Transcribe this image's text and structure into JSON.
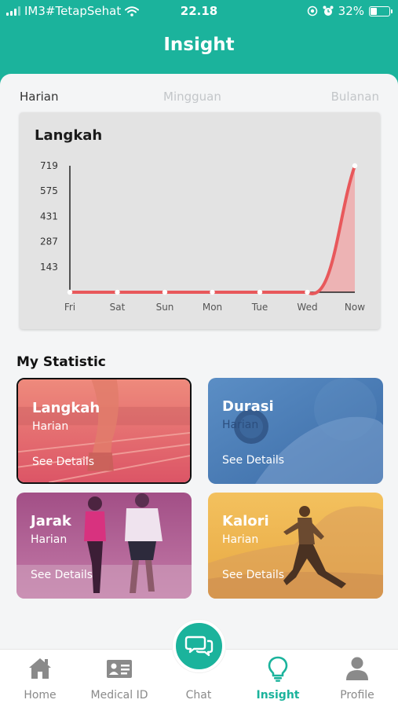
{
  "status_bar": {
    "carrier": "IM3#TetapSehat",
    "time": "22.18",
    "battery": "32%"
  },
  "header": {
    "title": "Insight"
  },
  "period_tabs": {
    "daily": "Harian",
    "weekly": "Mingguan",
    "monthly": "Bulanan",
    "selected": "Harian"
  },
  "chart_data": {
    "type": "area",
    "title": "Langkah",
    "categories": [
      "Fri",
      "Sat",
      "Sun",
      "Mon",
      "Tue",
      "Wed",
      "Now"
    ],
    "values": [
      0,
      0,
      0,
      0,
      0,
      0,
      719
    ],
    "yticks": [
      143,
      287,
      431,
      575,
      719
    ],
    "ylim": [
      0,
      719
    ],
    "line_color": "#e8585b",
    "fill_color": "#f0a3a4",
    "grid": false
  },
  "statistics": {
    "title": "My Statistic",
    "cards": [
      {
        "name": "Langkah",
        "period": "Harian",
        "action": "See Details",
        "color": "#e56b6a"
      },
      {
        "name": "Durasi",
        "period": "Harian",
        "action": "See Details",
        "color": "#4a7bb3"
      },
      {
        "name": "Jarak",
        "period": "Harian",
        "action": "See Details",
        "color": "#9c4d85"
      },
      {
        "name": "Kalori",
        "period": "Harian",
        "action": "See Details",
        "color": "#e9b255"
      }
    ]
  },
  "nav": {
    "items": [
      {
        "label": "Home",
        "icon": "home-icon"
      },
      {
        "label": "Medical ID",
        "icon": "id-card-icon"
      },
      {
        "label": "Chat",
        "icon": "chat-bubbles-icon"
      },
      {
        "label": "Insight",
        "icon": "lightbulb-icon"
      },
      {
        "label": "Profile",
        "icon": "person-icon"
      }
    ],
    "active": "Insight"
  },
  "colors": {
    "accent": "#1bb39c",
    "inactive": "#8a8a8a"
  }
}
